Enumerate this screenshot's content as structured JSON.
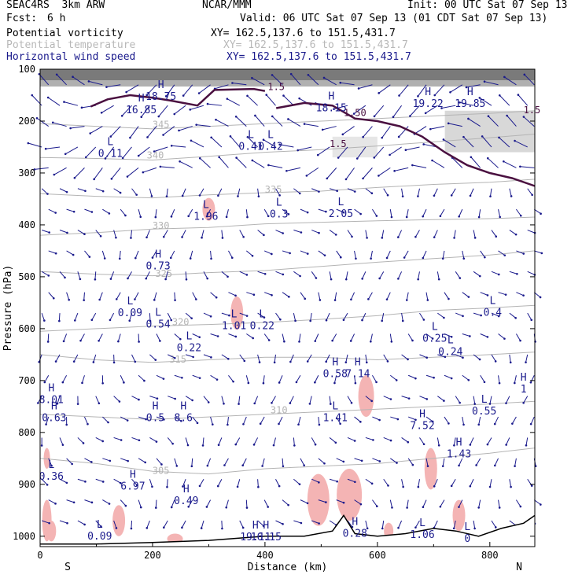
{
  "header": {
    "model": "SEAC4RS  3km ARW",
    "org": "NCAR/MMM",
    "init": "Init: 00 UTC Sat 07 Sep 13",
    "fcst_label": "Fcst:",
    "fcst_value": "6 h",
    "valid": "Valid: 06 UTC Sat 07 Sep 13 (01 CDT Sat 07 Sep 13)"
  },
  "fields": [
    {
      "name": "Potential vorticity",
      "xy": "XY= 162.5,137.6 to 151.5,431.7",
      "color": "#000000"
    },
    {
      "name": "Potential temperature",
      "xy": "XY= 162.5,137.6 to 151.5,431.7",
      "color": "#b8b8b8"
    },
    {
      "name": "Horizontal wind speed",
      "xy": "XY= 162.5,137.6 to 151.5,431.7",
      "color": "#1a1a8c"
    }
  ],
  "colors": {
    "pv_contour": "#4a1040",
    "theta": "#b4b4b4",
    "wind": "#1a1a8c",
    "pv_shade": "#f4b4b4",
    "terrain": "#000000",
    "label_hl": "#1a1a8c"
  },
  "chart_data": {
    "type": "cross-section",
    "xlabel": "Distance (km)",
    "ylabel": "Pressure (hPa)",
    "xlim": [
      0,
      880
    ],
    "ylim": [
      1020,
      100
    ],
    "x_ticks": [
      "0",
      "200",
      "400",
      "600",
      "800"
    ],
    "x_tick_values": [
      0,
      200,
      400,
      600,
      800
    ],
    "y_ticks": [
      "100",
      "200",
      "300",
      "400",
      "500",
      "600",
      "700",
      "800",
      "900",
      "1000"
    ],
    "y_tick_values": [
      100,
      200,
      300,
      400,
      500,
      600,
      700,
      800,
      900,
      1000
    ],
    "end_labels": {
      "left": "S",
      "right": "N"
    },
    "theta_contours": [
      {
        "label": "305",
        "points": [
          [
            0,
            850
          ],
          [
            100,
            860
          ],
          [
            200,
            875
          ],
          [
            300,
            880
          ],
          [
            400,
            870
          ],
          [
            500,
            865
          ],
          [
            600,
            860
          ],
          [
            700,
            850
          ],
          [
            800,
            840
          ],
          [
            880,
            830
          ]
        ],
        "label_at": [
          215,
          880
        ]
      },
      {
        "label": "310",
        "points": [
          [
            0,
            765
          ],
          [
            100,
            770
          ],
          [
            200,
            775
          ],
          [
            300,
            770
          ],
          [
            400,
            765
          ],
          [
            500,
            760
          ],
          [
            600,
            755
          ],
          [
            700,
            750
          ],
          [
            800,
            745
          ],
          [
            880,
            740
          ]
        ],
        "label_at": [
          425,
          763
        ]
      },
      {
        "label": "315",
        "points": [
          [
            0,
            650
          ],
          [
            100,
            660
          ],
          [
            200,
            665
          ],
          [
            300,
            660
          ],
          [
            400,
            655
          ],
          [
            500,
            655
          ],
          [
            600,
            660
          ],
          [
            700,
            655
          ],
          [
            800,
            650
          ],
          [
            880,
            645
          ]
        ],
        "label_at": [
          245,
          665
        ]
      },
      {
        "label": "320",
        "points": [
          [
            0,
            605
          ],
          [
            100,
            600
          ],
          [
            200,
            595
          ],
          [
            300,
            592
          ],
          [
            400,
            588
          ],
          [
            500,
            582
          ],
          [
            600,
            575
          ],
          [
            700,
            565
          ],
          [
            800,
            560
          ],
          [
            880,
            555
          ]
        ],
        "label_at": [
          250,
          593
        ]
      },
      {
        "label": "325",
        "points": [
          [
            0,
            490
          ],
          [
            100,
            495
          ],
          [
            200,
            498
          ],
          [
            300,
            492
          ],
          [
            400,
            488
          ],
          [
            500,
            480
          ],
          [
            600,
            472
          ],
          [
            700,
            465
          ],
          [
            800,
            458
          ],
          [
            880,
            450
          ]
        ],
        "label_at": [
          220,
          500
        ]
      },
      {
        "label": "330",
        "points": [
          [
            0,
            420
          ],
          [
            100,
            415
          ],
          [
            200,
            408
          ],
          [
            300,
            405
          ],
          [
            400,
            398
          ],
          [
            500,
            395
          ],
          [
            600,
            392
          ],
          [
            700,
            390
          ],
          [
            800,
            388
          ],
          [
            880,
            385
          ]
        ],
        "label_at": [
          215,
          408
        ]
      },
      {
        "label": "335",
        "points": [
          [
            0,
            340
          ],
          [
            100,
            345
          ],
          [
            200,
            348
          ],
          [
            300,
            342
          ],
          [
            400,
            338
          ],
          [
            500,
            335
          ],
          [
            600,
            328
          ],
          [
            700,
            322
          ],
          [
            800,
            318
          ],
          [
            880,
            312
          ]
        ],
        "label_at": [
          415,
          338
        ]
      },
      {
        "label": "340",
        "points": [
          [
            0,
            270
          ],
          [
            100,
            272
          ],
          [
            200,
            275
          ],
          [
            300,
            268
          ],
          [
            400,
            260
          ],
          [
            500,
            255
          ],
          [
            600,
            248
          ],
          [
            700,
            240
          ],
          [
            800,
            232
          ],
          [
            880,
            225
          ]
        ],
        "label_at": [
          205,
          272
        ]
      },
      {
        "label": "345",
        "points": [
          [
            0,
            205
          ],
          [
            100,
            210
          ],
          [
            200,
            215
          ],
          [
            300,
            210
          ],
          [
            400,
            205
          ],
          [
            500,
            200
          ],
          [
            600,
            195
          ],
          [
            700,
            190
          ],
          [
            800,
            185
          ],
          [
            880,
            180
          ]
        ],
        "label_at": [
          215,
          213
        ]
      }
    ],
    "pv_contours": [
      {
        "label": "1.5",
        "points": [
          [
            90,
            172
          ],
          [
            120,
            158
          ],
          [
            160,
            150
          ],
          [
            200,
            155
          ],
          [
            230,
            160
          ],
          [
            280,
            170
          ],
          [
            310,
            140
          ],
          [
            380,
            138
          ],
          [
            400,
            142
          ]
        ]
      },
      {
        "label": "1.5",
        "points": [
          [
            420,
            175
          ],
          [
            470,
            165
          ],
          [
            520,
            170
          ],
          [
            560,
            195
          ],
          [
            600,
            200
          ],
          [
            640,
            210
          ],
          [
            680,
            230
          ],
          [
            720,
            260
          ],
          [
            760,
            285
          ],
          [
            800,
            300
          ],
          [
            840,
            310
          ],
          [
            880,
            325
          ]
        ]
      }
    ],
    "pv_labels": [
      [
        "1.5",
        420,
        140
      ],
      [
        "1.50",
        560,
        190
      ],
      [
        "1.5",
        530,
        250
      ],
      [
        "1.5",
        875,
        185
      ]
    ],
    "hl_labels": [
      [
        "H",
        18.75,
        215,
        156
      ],
      [
        "H",
        16.85,
        180,
        182
      ],
      [
        "L",
        0.11,
        125,
        266
      ],
      [
        "L",
        0.41,
        375,
        252
      ],
      [
        "L",
        0.42,
        410,
        252
      ],
      [
        "H",
        18.15,
        518,
        178
      ],
      [
        "H",
        19.22,
        690,
        170
      ],
      [
        "H",
        19.85,
        765,
        170
      ],
      [
        "L",
        1.96,
        295,
        387
      ],
      [
        "L",
        0.3,
        425,
        383
      ],
      [
        "L",
        2.05,
        535,
        382
      ],
      [
        "H",
        0.73,
        210,
        483
      ],
      [
        "L",
        0.09,
        160,
        573
      ],
      [
        "L",
        0.54,
        210,
        595
      ],
      [
        "L",
        1.01,
        345,
        598
      ],
      [
        "L",
        0.22,
        395,
        598
      ],
      [
        "L",
        0.22,
        265,
        640
      ],
      [
        "L",
        0.25,
        702,
        622
      ],
      [
        "L",
        0.24,
        730,
        648
      ],
      [
        "L",
        0.4,
        805,
        572
      ],
      [
        "H",
        0.58,
        525,
        690
      ],
      [
        "H",
        7.14,
        565,
        690
      ],
      [
        "L",
        1.41,
        525,
        775
      ],
      [
        "H",
        7.52,
        680,
        790
      ],
      [
        "H",
        1.43,
        745,
        845
      ],
      [
        "L",
        0.55,
        790,
        762
      ],
      [
        "H",
        8.01,
        20,
        740
      ],
      [
        "H",
        0.63,
        25,
        775
      ],
      [
        "H",
        0.5,
        205,
        775
      ],
      [
        "H",
        8.6,
        255,
        775
      ],
      [
        "L",
        0.36,
        20,
        888
      ],
      [
        "H",
        6.97,
        165,
        907
      ],
      [
        "H",
        0.49,
        260,
        935
      ],
      [
        "L",
        0.09,
        106,
        1003
      ],
      [
        "H",
        19.11,
        383,
        1005
      ],
      [
        "H",
        16.15,
        402,
        1005
      ],
      [
        "H",
        0.28,
        560,
        998
      ],
      [
        "L",
        1.06,
        680,
        1000
      ],
      [
        "L",
        0.0,
        760,
        1008
      ],
      [
        "H",
        1.0,
        860,
        720
      ]
    ],
    "terrain": [
      [
        0,
        1015
      ],
      [
        100,
        1015
      ],
      [
        200,
        1012
      ],
      [
        300,
        1008
      ],
      [
        400,
        1000
      ],
      [
        470,
        1000
      ],
      [
        520,
        990
      ],
      [
        540,
        960
      ],
      [
        560,
        995
      ],
      [
        600,
        1000
      ],
      [
        650,
        995
      ],
      [
        700,
        985
      ],
      [
        740,
        990
      ],
      [
        780,
        1000
      ],
      [
        820,
        985
      ],
      [
        860,
        975
      ],
      [
        880,
        960
      ]
    ]
  }
}
